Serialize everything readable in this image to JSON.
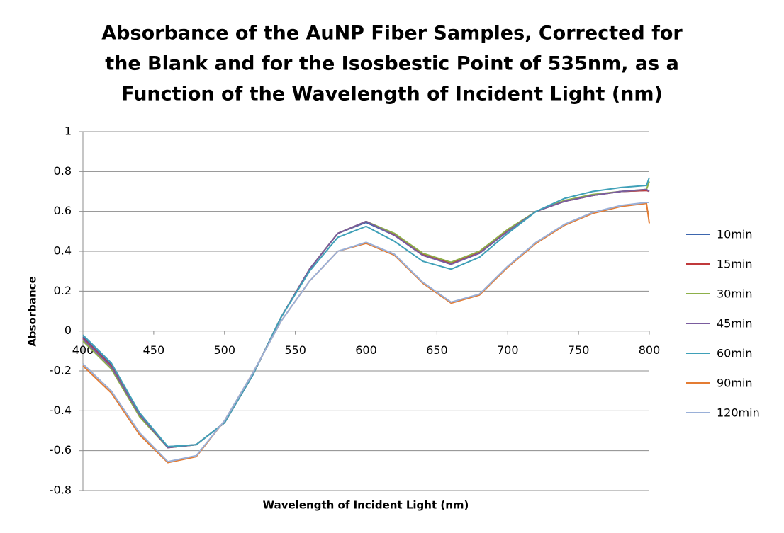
{
  "chart_data": {
    "type": "line",
    "title": [
      "Absorbance of the AuNP Fiber Samples, Corrected for",
      "the Blank and for the Isosbestic Point of 535nm, as a",
      "Function of the Wavelength of Incident Light (nm)"
    ],
    "x_label": "Wavelength of Incident Light (nm)",
    "y_label": "Absorbance",
    "x": [
      400,
      420,
      440,
      460,
      480,
      500,
      520,
      540,
      560,
      580,
      600,
      620,
      640,
      660,
      680,
      700,
      720,
      740,
      760,
      780,
      798,
      800
    ],
    "xlim": [
      400,
      800
    ],
    "xticks": [
      400,
      450,
      500,
      550,
      600,
      650,
      700,
      750,
      800
    ],
    "ylim": [
      -0.8,
      1
    ],
    "yticks": [
      -0.8,
      -0.6,
      -0.4,
      -0.2,
      0,
      0.2,
      0.4,
      0.6,
      0.8,
      1
    ],
    "grid": true,
    "legend": "right",
    "series": [
      {
        "name": "10min",
        "color": "#3d66ae",
        "values": [
          -0.03,
          -0.17,
          -0.42,
          -0.58,
          -0.57,
          -0.46,
          -0.22,
          0.07,
          0.31,
          0.49,
          0.545,
          0.48,
          0.38,
          0.335,
          0.39,
          0.5,
          0.6,
          0.65,
          0.68,
          0.7,
          0.705,
          0.705
        ]
      },
      {
        "name": "15min",
        "color": "#c0393b",
        "values": [
          -0.035,
          -0.175,
          -0.42,
          -0.585,
          -0.57,
          -0.46,
          -0.22,
          0.07,
          0.31,
          0.49,
          0.55,
          0.485,
          0.385,
          0.34,
          0.395,
          0.505,
          0.6,
          0.65,
          0.68,
          0.7,
          0.705,
          0.7
        ]
      },
      {
        "name": "30min",
        "color": "#8db04a",
        "values": [
          -0.05,
          -0.19,
          -0.43,
          -0.585,
          -0.57,
          -0.46,
          -0.22,
          0.07,
          0.31,
          0.49,
          0.55,
          0.49,
          0.39,
          0.345,
          0.4,
          0.51,
          0.6,
          0.655,
          0.685,
          0.7,
          0.71,
          0.75
        ]
      },
      {
        "name": "45min",
        "color": "#7a5c9e",
        "values": [
          -0.04,
          -0.18,
          -0.42,
          -0.585,
          -0.57,
          -0.46,
          -0.22,
          0.07,
          0.31,
          0.49,
          0.55,
          0.48,
          0.38,
          0.335,
          0.39,
          0.5,
          0.6,
          0.65,
          0.68,
          0.7,
          0.71,
          0.7
        ]
      },
      {
        "name": "60min",
        "color": "#3fa0b8",
        "values": [
          -0.02,
          -0.16,
          -0.41,
          -0.58,
          -0.57,
          -0.46,
          -0.22,
          0.07,
          0.3,
          0.47,
          0.525,
          0.45,
          0.35,
          0.31,
          0.37,
          0.49,
          0.6,
          0.665,
          0.7,
          0.72,
          0.73,
          0.77
        ]
      },
      {
        "name": "90min",
        "color": "#e47c33",
        "values": [
          -0.175,
          -0.31,
          -0.52,
          -0.66,
          -0.63,
          -0.45,
          -0.21,
          0.05,
          0.25,
          0.4,
          0.44,
          0.38,
          0.24,
          0.14,
          0.18,
          0.32,
          0.44,
          0.53,
          0.59,
          0.625,
          0.64,
          0.54
        ]
      },
      {
        "name": "120min",
        "color": "#9ab0d8",
        "values": [
          -0.165,
          -0.3,
          -0.51,
          -0.655,
          -0.625,
          -0.45,
          -0.21,
          0.05,
          0.25,
          0.4,
          0.445,
          0.385,
          0.245,
          0.145,
          0.185,
          0.325,
          0.445,
          0.535,
          0.595,
          0.63,
          0.645,
          0.645
        ]
      }
    ]
  }
}
